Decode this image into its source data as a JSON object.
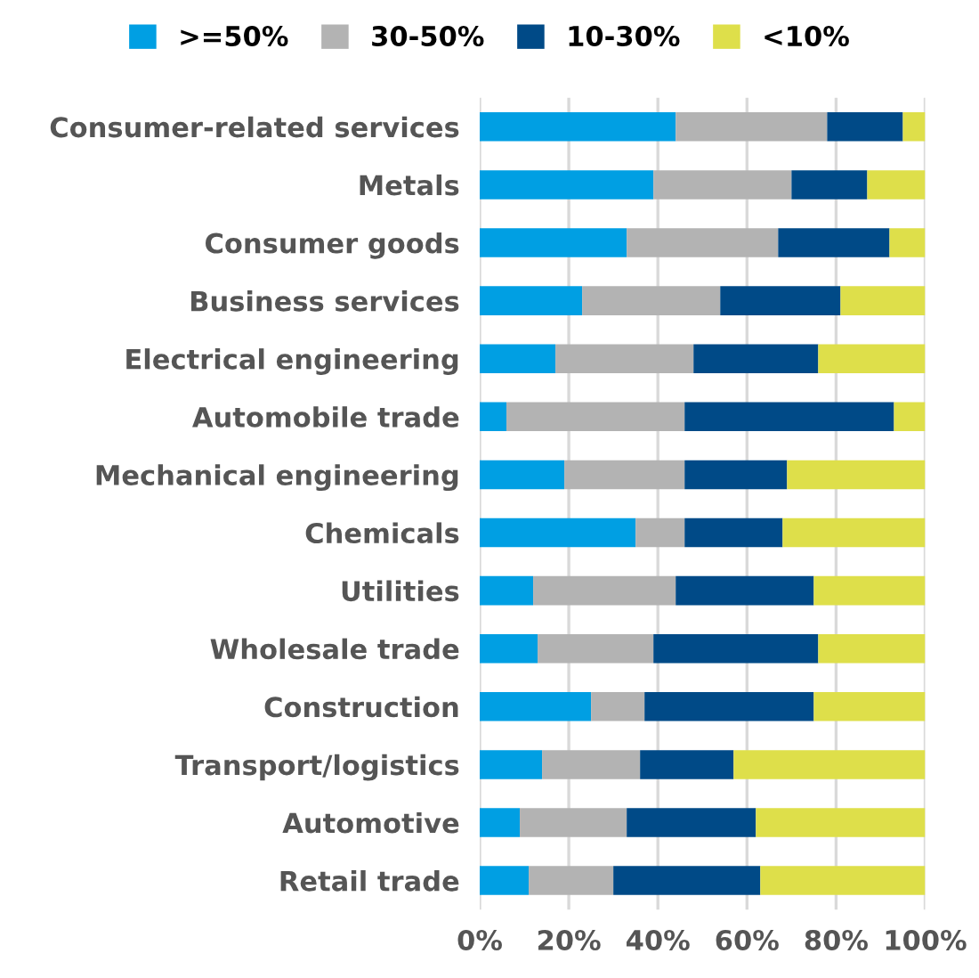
{
  "chart_data": {
    "type": "bar",
    "orientation": "horizontal",
    "stacked": true,
    "categories": [
      "Consumer-related services",
      "Metals",
      "Consumer goods",
      "Business services",
      "Electrical engineering",
      "Automobile trade",
      "Mechanical engineering",
      "Chemicals",
      "Utilities",
      "Wholesale trade",
      "Construction",
      "Transport/logistics",
      "Automotive",
      "Retail trade"
    ],
    "series": [
      {
        "name": ">=50%",
        "color": "#009fe3",
        "values": [
          44,
          39,
          33,
          23,
          17,
          6,
          19,
          35,
          12,
          13,
          25,
          14,
          9,
          11
        ]
      },
      {
        "name": "30-50%",
        "color": "#b3b3b3",
        "values": [
          34,
          31,
          34,
          31,
          31,
          40,
          27,
          11,
          32,
          26,
          12,
          22,
          24,
          19
        ]
      },
      {
        "name": "10-30%",
        "color": "#004a87",
        "values": [
          17,
          17,
          25,
          27,
          28,
          47,
          23,
          22,
          31,
          37,
          38,
          21,
          29,
          33
        ]
      },
      {
        "name": "<10%",
        "color": "#dedf4a",
        "values": [
          5,
          13,
          8,
          19,
          24,
          7,
          31,
          32,
          25,
          24,
          25,
          43,
          38,
          37
        ]
      }
    ],
    "xlim": [
      0,
      100
    ],
    "xticks": [
      {
        "value": 0,
        "label": "0%"
      },
      {
        "value": 20,
        "label": "20%"
      },
      {
        "value": 40,
        "label": "40%"
      },
      {
        "value": 60,
        "label": "60%"
      },
      {
        "value": 80,
        "label": "80%"
      },
      {
        "value": 100,
        "label": "100%"
      }
    ],
    "grid": "x",
    "legend": "top"
  }
}
